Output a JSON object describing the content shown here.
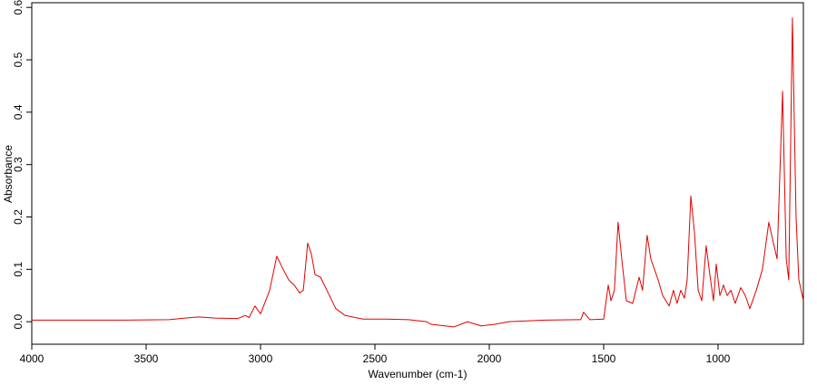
{
  "chart_data": {
    "type": "line",
    "x_label": "Wavenumber (cm-1)",
    "y_label": "Absorbance",
    "xlim": [
      4000,
      627
    ],
    "ylim": [
      -0.043,
      0.609
    ],
    "xticks": [
      4000,
      3500,
      3000,
      2500,
      2000,
      1500,
      1000
    ],
    "yticks": [
      {
        "value": 0,
        "label": "0.0"
      },
      0.1,
      0.2,
      0.3,
      0.4,
      0.5,
      0.6
    ],
    "series": [
      {
        "color": "#e00000",
        "x": [
          4000,
          3800,
          3600,
          3400,
          3330,
          3270,
          3200,
          3100,
          3067,
          3050,
          3024,
          3000,
          2960,
          2929,
          2901,
          2877,
          2853,
          2829,
          2813,
          2794,
          2778,
          2762,
          2738,
          2710,
          2671,
          2631,
          2552,
          2450,
          2353,
          2274,
          2254,
          2194,
          2155,
          2095,
          2036,
          1976,
          1916,
          1758,
          1600,
          1588,
          1560,
          1500,
          1480,
          1468,
          1453,
          1437,
          1421,
          1401,
          1373,
          1345,
          1330,
          1310,
          1294,
          1278,
          1262,
          1242,
          1214,
          1195,
          1179,
          1163,
          1147,
          1135,
          1119,
          1103,
          1087,
          1071,
          1052,
          1036,
          1020,
          1008,
          992,
          976,
          960,
          944,
          925,
          901,
          881,
          861,
          833,
          806,
          778,
          758,
          742,
          718,
          702,
          691,
          675,
          659,
          647,
          627
        ],
        "values": [
          0.003,
          0.003,
          0.003,
          0.004,
          0.007,
          0.009,
          0.007,
          0.006,
          0.012,
          0.008,
          0.03,
          0.015,
          0.06,
          0.125,
          0.1,
          0.08,
          0.07,
          0.055,
          0.06,
          0.15,
          0.13,
          0.09,
          0.085,
          0.06,
          0.025,
          0.012,
          0.005,
          0.005,
          0.004,
          0.0,
          -0.005,
          -0.008,
          -0.01,
          0.0,
          -0.008,
          -0.005,
          0.0,
          0.003,
          0.004,
          0.018,
          0.004,
          0.005,
          0.07,
          0.04,
          0.06,
          0.19,
          0.12,
          0.04,
          0.035,
          0.085,
          0.06,
          0.165,
          0.12,
          0.1,
          0.08,
          0.05,
          0.03,
          0.06,
          0.035,
          0.06,
          0.045,
          0.08,
          0.24,
          0.17,
          0.06,
          0.04,
          0.145,
          0.09,
          0.04,
          0.11,
          0.05,
          0.07,
          0.05,
          0.06,
          0.035,
          0.065,
          0.05,
          0.025,
          0.06,
          0.1,
          0.19,
          0.15,
          0.12,
          0.44,
          0.12,
          0.08,
          0.58,
          0.2,
          0.08,
          0.04
        ]
      }
    ]
  }
}
